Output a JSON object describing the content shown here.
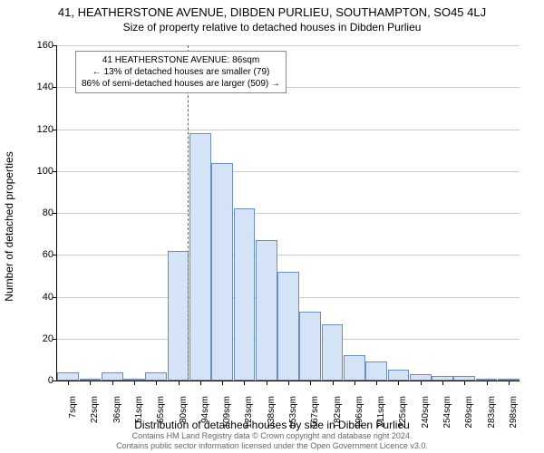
{
  "title": "41, HEATHERSTONE AVENUE, DIBDEN PURLIEU, SOUTHAMPTON, SO45 4LJ",
  "subtitle": "Size of property relative to detached houses in Dibden Purlieu",
  "chart": {
    "type": "histogram",
    "x_categories": [
      "7sqm",
      "22sqm",
      "36sqm",
      "51sqm",
      "65sqm",
      "80sqm",
      "94sqm",
      "109sqm",
      "123sqm",
      "138sqm",
      "153sqm",
      "167sqm",
      "182sqm",
      "196sqm",
      "211sqm",
      "225sqm",
      "240sqm",
      "254sqm",
      "269sqm",
      "283sqm",
      "298sqm"
    ],
    "values": [
      4,
      1,
      4,
      1,
      4,
      62,
      118,
      104,
      82,
      67,
      52,
      33,
      27,
      12,
      9,
      5,
      3,
      2,
      2,
      1,
      1
    ],
    "bar_fill": "#d5e3f7",
    "bar_stroke": "#6c8ebf",
    "vline_x_value": 86,
    "vline_color": "#e03030",
    "ylim": [
      0,
      160
    ],
    "ytick_step": 20,
    "ylabel": "Number of detached properties",
    "xlabel": "Distribution of detached houses by size in Dibden Purlieu",
    "grid_color": "#cccccc",
    "background_color": "#ffffff",
    "annotation": {
      "line1": "41 HEATHERSTONE AVENUE: 86sqm",
      "line2": "← 13% of detached houses are smaller (79)",
      "line3": "86% of semi-detached houses are larger (509) →"
    }
  },
  "footer": {
    "line1": "Contains HM Land Registry data © Crown copyright and database right 2024.",
    "line2": "Contains public sector information licensed under the Open Government Licence v3.0."
  }
}
